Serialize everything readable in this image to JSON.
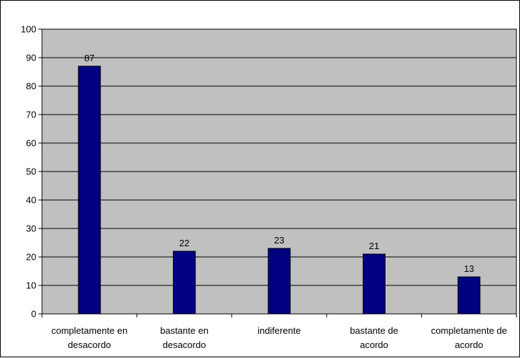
{
  "chart_data": {
    "type": "bar",
    "categories": [
      [
        "completamente en",
        "desacordo"
      ],
      [
        "bastante en",
        "desacordo"
      ],
      [
        "indiferente"
      ],
      [
        "bastante de",
        "acordo"
      ],
      [
        "completamente de",
        "acordo"
      ]
    ],
    "values": [
      87,
      22,
      23,
      21,
      13
    ],
    "data_labels": [
      "87",
      "22",
      "23",
      "21",
      "13"
    ],
    "yticks": [
      "0",
      "10",
      "20",
      "30",
      "40",
      "50",
      "60",
      "70",
      "80",
      "90",
      "100"
    ],
    "ylim": [
      0,
      100
    ],
    "ystep": 10,
    "grid": true,
    "legend": "none",
    "title": "",
    "xlabel": "",
    "ylabel": "",
    "colors": {
      "bar": "#000080",
      "plot_background": "#C0C0C0",
      "grid": "#000000",
      "axis": "#000000"
    }
  }
}
